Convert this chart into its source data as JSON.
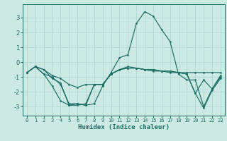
{
  "xlabel": "Humidex (Indice chaleur)",
  "ylabel": "",
  "xlim": [
    -0.5,
    23.5
  ],
  "ylim": [
    -3.6,
    3.9
  ],
  "bg_color": "#cce9e4",
  "grid_color": "#aad4cc",
  "line_color": "#1a6e64",
  "series": [
    {
      "x": [
        0,
        1,
        2,
        3,
        4,
        5,
        6,
        7,
        8,
        9,
        10,
        11,
        12,
        13,
        14,
        15,
        16,
        17,
        18,
        19,
        20,
        21,
        22,
        23
      ],
      "y": [
        -0.7,
        -0.3,
        -0.8,
        -1.6,
        -2.6,
        -2.9,
        -2.8,
        -2.9,
        -2.8,
        -1.6,
        -0.7,
        0.3,
        0.5,
        2.6,
        3.4,
        3.1,
        2.2,
        1.4,
        -0.8,
        -1.2,
        -1.2,
        -3.0,
        -1.8,
        -0.9
      ]
    },
    {
      "x": [
        0,
        1,
        2,
        3,
        4,
        5,
        6,
        7,
        8,
        9,
        10,
        11,
        12,
        13,
        14,
        15,
        16,
        17,
        18,
        19,
        20,
        21,
        22,
        23
      ],
      "y": [
        -0.7,
        -0.3,
        -0.8,
        -1.0,
        -1.5,
        -2.8,
        -2.8,
        -2.9,
        -1.5,
        -1.5,
        -0.8,
        -0.5,
        -0.3,
        -0.4,
        -0.5,
        -0.6,
        -0.6,
        -0.7,
        -0.7,
        -0.8,
        -2.1,
        -3.1,
        -1.9,
        -1.1
      ]
    },
    {
      "x": [
        0,
        1,
        2,
        3,
        4,
        5,
        6,
        7,
        8,
        9,
        10,
        11,
        12,
        13,
        14,
        15,
        16,
        17,
        18,
        19,
        20,
        21,
        22,
        23
      ],
      "y": [
        -0.7,
        -0.3,
        -0.5,
        -1.1,
        -1.4,
        -2.9,
        -2.9,
        -2.8,
        -1.5,
        -1.5,
        -0.8,
        -0.5,
        -0.4,
        -0.4,
        -0.5,
        -0.5,
        -0.6,
        -0.6,
        -0.7,
        -0.8,
        -2.1,
        -1.2,
        -1.8,
        -1.0
      ]
    },
    {
      "x": [
        0,
        1,
        2,
        3,
        4,
        5,
        6,
        7,
        8,
        9,
        10,
        11,
        12,
        13,
        14,
        15,
        16,
        17,
        18,
        19,
        20,
        21,
        22,
        23
      ],
      "y": [
        -0.7,
        -0.3,
        -0.5,
        -0.9,
        -1.1,
        -1.5,
        -1.7,
        -1.5,
        -1.5,
        -1.5,
        -0.8,
        -0.5,
        -0.4,
        -0.4,
        -0.5,
        -0.5,
        -0.6,
        -0.6,
        -0.7,
        -0.7,
        -0.7,
        -0.7,
        -0.7,
        -0.7
      ]
    }
  ],
  "yticks": [
    -3,
    -2,
    -1,
    0,
    1,
    2,
    3
  ],
  "xticks": [
    0,
    1,
    2,
    3,
    4,
    5,
    6,
    7,
    8,
    9,
    10,
    11,
    12,
    13,
    14,
    15,
    16,
    17,
    18,
    19,
    20,
    21,
    22,
    23
  ],
  "tick_fontsize": 5.0,
  "xlabel_fontsize": 6.5,
  "ytick_fontsize": 6.0,
  "marker_size": 1.5,
  "line_width": 0.85
}
